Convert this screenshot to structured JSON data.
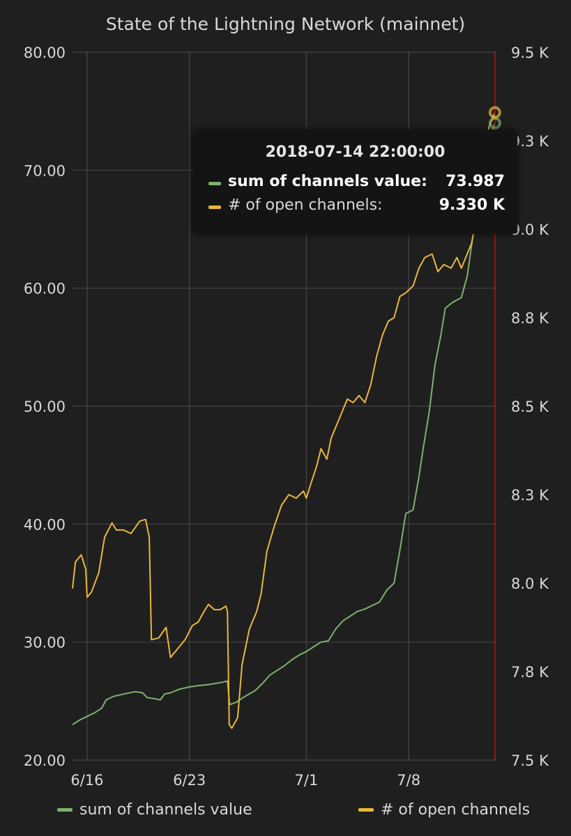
{
  "panel_title": "State of the Lightning Network (mainnet)",
  "colors": {
    "green": "#7eb26d",
    "yellow": "#eab839",
    "grid": "#464646",
    "background": "#1f1f20",
    "marker": "#8b1a1a"
  },
  "legend": [
    {
      "label": "sum of channels value",
      "color": "#7eb26d"
    },
    {
      "label": "# of open channels",
      "color": "#eab839"
    }
  ],
  "tooltip": {
    "time": "2018-07-14 22:00:00",
    "rows": [
      {
        "label": "sum of channels value:",
        "value": "73.987",
        "color": "#7eb26d"
      },
      {
        "label": "# of open channels:",
        "value": "9.330 K",
        "color": "#eab839"
      }
    ]
  },
  "chart_data": {
    "type": "line",
    "title": "State of the Lightning Network (mainnet)",
    "x_ticks": [
      {
        "label": "6/16",
        "day": 16
      },
      {
        "label": "6/23",
        "day": 23
      },
      {
        "label": "7/1",
        "day": 31
      },
      {
        "label": "7/8",
        "day": 38
      }
    ],
    "xlim": [
      15,
      44
    ],
    "y_left": {
      "ylim": [
        20,
        80
      ],
      "ticks": [
        "20.00",
        "30.00",
        "40.00",
        "50.00",
        "60.00",
        "70.00",
        "80.00"
      ]
    },
    "y_right": {
      "ylim": [
        7500,
        9500
      ],
      "ticks": [
        {
          "label": "7.5 K",
          "value": 7500
        },
        {
          "label": "7.8 K",
          "value": 7750
        },
        {
          "label": "8.0 K",
          "value": 8000
        },
        {
          "label": "8.3 K",
          "value": 8250
        },
        {
          "label": "8.5 K",
          "value": 8500
        },
        {
          "label": "8.8 K",
          "value": 8750
        },
        {
          "label": "9.0 K",
          "value": 9000
        },
        {
          "label": "9.3 K",
          "value": 9250
        },
        {
          "label": "9.5 K",
          "value": 9500
        }
      ]
    },
    "grid": true,
    "legend_position": "bottom",
    "marker_day": 43.9,
    "series": [
      {
        "name": "sum of channels value",
        "axis": "left",
        "color": "#7eb26d",
        "points": [
          [
            15.0,
            23.0
          ],
          [
            15.5,
            23.4
          ],
          [
            16.0,
            23.7
          ],
          [
            16.5,
            24.0
          ],
          [
            17.0,
            24.4
          ],
          [
            17.3,
            25.1
          ],
          [
            17.8,
            25.4
          ],
          [
            18.5,
            25.6
          ],
          [
            19.3,
            25.8
          ],
          [
            19.8,
            25.7
          ],
          [
            20.1,
            25.3
          ],
          [
            20.6,
            25.2
          ],
          [
            21.0,
            25.1
          ],
          [
            21.3,
            25.6
          ],
          [
            21.7,
            25.7
          ],
          [
            22.3,
            26.0
          ],
          [
            23.0,
            26.2
          ],
          [
            23.6,
            26.3
          ],
          [
            24.3,
            26.4
          ],
          [
            24.8,
            26.5
          ],
          [
            25.3,
            26.6
          ],
          [
            25.6,
            26.7
          ],
          [
            25.75,
            24.7
          ],
          [
            26.2,
            24.9
          ],
          [
            26.8,
            25.4
          ],
          [
            27.5,
            25.9
          ],
          [
            28.0,
            26.5
          ],
          [
            28.5,
            27.2
          ],
          [
            29.0,
            27.6
          ],
          [
            29.5,
            28.0
          ],
          [
            30.0,
            28.5
          ],
          [
            30.5,
            28.9
          ],
          [
            31.0,
            29.2
          ],
          [
            31.5,
            29.6
          ],
          [
            32.0,
            30.0
          ],
          [
            32.5,
            30.1
          ],
          [
            33.0,
            31.1
          ],
          [
            33.5,
            31.8
          ],
          [
            34.0,
            32.2
          ],
          [
            34.5,
            32.6
          ],
          [
            35.0,
            32.8
          ],
          [
            35.5,
            33.1
          ],
          [
            36.0,
            33.4
          ],
          [
            36.5,
            34.4
          ],
          [
            37.0,
            35.0
          ],
          [
            37.4,
            37.8
          ],
          [
            37.8,
            40.9
          ],
          [
            38.3,
            41.2
          ],
          [
            38.7,
            44.0
          ],
          [
            39.0,
            46.5
          ],
          [
            39.4,
            49.5
          ],
          [
            39.8,
            53.5
          ],
          [
            40.2,
            56.0
          ],
          [
            40.5,
            58.3
          ],
          [
            41.0,
            58.8
          ],
          [
            41.6,
            59.2
          ],
          [
            42.0,
            61.0
          ],
          [
            42.4,
            64.5
          ],
          [
            42.8,
            67.5
          ],
          [
            43.2,
            71.0
          ],
          [
            43.6,
            73.0
          ],
          [
            43.9,
            73.987
          ]
        ]
      },
      {
        "name": "# of open channels",
        "axis": "right",
        "color": "#eab839",
        "points": [
          [
            15.0,
            7985
          ],
          [
            15.2,
            8060
          ],
          [
            15.6,
            8080
          ],
          [
            15.9,
            8040
          ],
          [
            16.0,
            7960
          ],
          [
            16.3,
            7975
          ],
          [
            16.8,
            8030
          ],
          [
            17.2,
            8130
          ],
          [
            17.7,
            8170
          ],
          [
            18.0,
            8150
          ],
          [
            18.5,
            8150
          ],
          [
            19.0,
            8140
          ],
          [
            19.6,
            8175
          ],
          [
            20.0,
            8180
          ],
          [
            20.25,
            8130
          ],
          [
            20.4,
            7840
          ],
          [
            20.9,
            7845
          ],
          [
            21.4,
            7875
          ],
          [
            21.7,
            7790
          ],
          [
            22.2,
            7815
          ],
          [
            22.7,
            7840
          ],
          [
            23.2,
            7880
          ],
          [
            23.6,
            7890
          ],
          [
            24.0,
            7920
          ],
          [
            24.3,
            7940
          ],
          [
            24.7,
            7925
          ],
          [
            25.1,
            7925
          ],
          [
            25.5,
            7935
          ],
          [
            25.6,
            7920
          ],
          [
            25.72,
            7600
          ],
          [
            25.9,
            7590
          ],
          [
            26.3,
            7620
          ],
          [
            26.6,
            7770
          ],
          [
            27.1,
            7870
          ],
          [
            27.6,
            7920
          ],
          [
            27.9,
            7970
          ],
          [
            28.3,
            8090
          ],
          [
            28.8,
            8160
          ],
          [
            29.3,
            8220
          ],
          [
            29.8,
            8250
          ],
          [
            30.3,
            8240
          ],
          [
            30.8,
            8260
          ],
          [
            31.0,
            8240
          ],
          [
            31.3,
            8280
          ],
          [
            31.7,
            8330
          ],
          [
            32.0,
            8380
          ],
          [
            32.4,
            8350
          ],
          [
            32.7,
            8410
          ],
          [
            33.0,
            8440
          ],
          [
            33.4,
            8480
          ],
          [
            33.8,
            8520
          ],
          [
            34.2,
            8510
          ],
          [
            34.6,
            8530
          ],
          [
            35.0,
            8510
          ],
          [
            35.4,
            8560
          ],
          [
            35.8,
            8640
          ],
          [
            36.2,
            8700
          ],
          [
            36.6,
            8740
          ],
          [
            37.0,
            8750
          ],
          [
            37.4,
            8810
          ],
          [
            37.8,
            8820
          ],
          [
            38.3,
            8840
          ],
          [
            38.7,
            8890
          ],
          [
            39.1,
            8920
          ],
          [
            39.6,
            8930
          ],
          [
            40.0,
            8880
          ],
          [
            40.4,
            8900
          ],
          [
            40.9,
            8890
          ],
          [
            41.3,
            8920
          ],
          [
            41.6,
            8890
          ],
          [
            41.9,
            8920
          ],
          [
            42.3,
            8960
          ],
          [
            42.7,
            9050
          ],
          [
            43.1,
            9170
          ],
          [
            43.5,
            9290
          ],
          [
            43.9,
            9330
          ]
        ]
      }
    ]
  }
}
